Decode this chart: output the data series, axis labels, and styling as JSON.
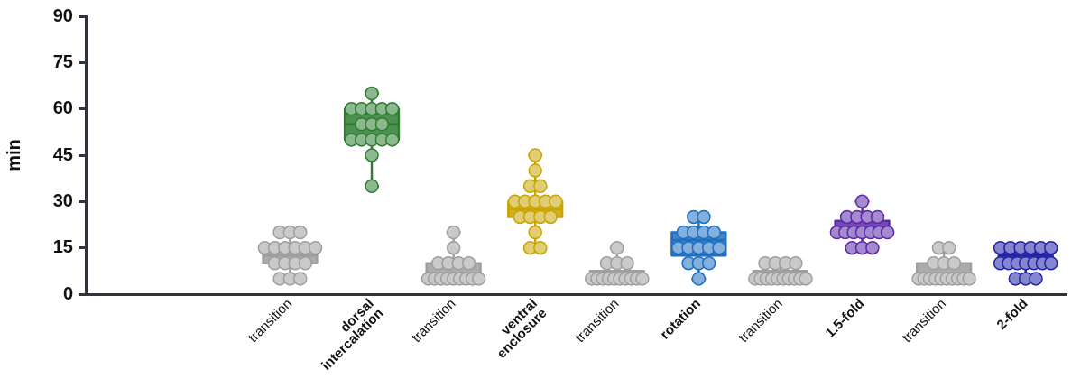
{
  "chart_data": {
    "type": "box",
    "categories": [
      null,
      null,
      "transition",
      "dorsal intercalation",
      "transition",
      "ventral enclosure",
      "transition",
      "rotation",
      "transition",
      "1.5-fold",
      "transition",
      "2-fold"
    ],
    "ylabel": "min",
    "ylim": [
      0,
      90
    ],
    "yticks": [
      0,
      15,
      30,
      45,
      60,
      75,
      90
    ],
    "grid": false,
    "marker": "circle",
    "series": [
      {
        "colors": [
          null,
          null,
          "#9e9e9e",
          "#2e7d32",
          "#9e9e9e",
          "#c9a400",
          "#9e9e9e",
          "#1e6fc0",
          "#9e9e9e",
          "#5b2aa8",
          "#9e9e9e",
          "#2323a8"
        ],
        "boxes": [
          null,
          null,
          {
            "low": 5,
            "q1": 10,
            "median": 12.5,
            "q3": 15,
            "high": 20,
            "outliers": [
              20,
              20,
              20,
              15,
              15,
              15,
              15,
              15,
              15,
              10,
              10,
              10,
              10,
              5,
              5,
              5
            ]
          },
          {
            "low": 35,
            "q1": 50,
            "median": 55,
            "q3": 60,
            "high": 65,
            "outliers": [
              65,
              60,
              60,
              60,
              60,
              60,
              55,
              55,
              55,
              50,
              50,
              50,
              50,
              50,
              45,
              35
            ]
          },
          {
            "low": 5,
            "q1": 5,
            "median": 5,
            "q3": 10,
            "high": 20,
            "outliers": [
              20,
              15,
              10,
              10,
              10,
              10,
              5,
              5,
              5,
              5,
              5,
              5,
              5,
              5,
              5
            ]
          },
          {
            "low": 15,
            "q1": 25,
            "median": 27.5,
            "q3": 30,
            "high": 45,
            "outliers": [
              45,
              40,
              35,
              35,
              30,
              30,
              30,
              30,
              30,
              25,
              25,
              25,
              25,
              20,
              15,
              15
            ]
          },
          {
            "low": 5,
            "q1": 5,
            "median": 5,
            "q3": 7.5,
            "high": 15,
            "outliers": [
              15,
              10,
              10,
              10,
              5,
              5,
              5,
              5,
              5,
              5,
              5,
              5,
              5,
              5
            ]
          },
          {
            "low": 5,
            "q1": 12.5,
            "median": 17.5,
            "q3": 20,
            "high": 25,
            "outliers": [
              25,
              25,
              20,
              20,
              20,
              20,
              15,
              15,
              15,
              15,
              15,
              10,
              10,
              10,
              5
            ]
          },
          {
            "low": 5,
            "q1": 5,
            "median": 5,
            "q3": 7.5,
            "high": 10,
            "outliers": [
              10,
              10,
              10,
              10,
              5,
              5,
              5,
              5,
              5,
              5,
              5,
              5,
              5,
              5
            ]
          },
          {
            "low": 15,
            "q1": 18.75,
            "median": 20,
            "q3": 23.75,
            "high": 30,
            "outliers": [
              30,
              25,
              25,
              25,
              25,
              20,
              20,
              20,
              20,
              20,
              20,
              20,
              15,
              15,
              15
            ]
          },
          {
            "low": 5,
            "q1": 5,
            "median": 5,
            "q3": 10,
            "high": 15,
            "outliers": [
              15,
              15,
              10,
              10,
              10,
              5,
              5,
              5,
              5,
              5,
              5,
              5,
              5,
              5,
              5
            ]
          },
          {
            "low": 5,
            "q1": 10,
            "median": 12.5,
            "q3": 15,
            "high": 15,
            "outliers": [
              15,
              15,
              15,
              15,
              15,
              15,
              10,
              10,
              10,
              10,
              10,
              10,
              10,
              5,
              5,
              5
            ]
          }
        ]
      }
    ]
  }
}
